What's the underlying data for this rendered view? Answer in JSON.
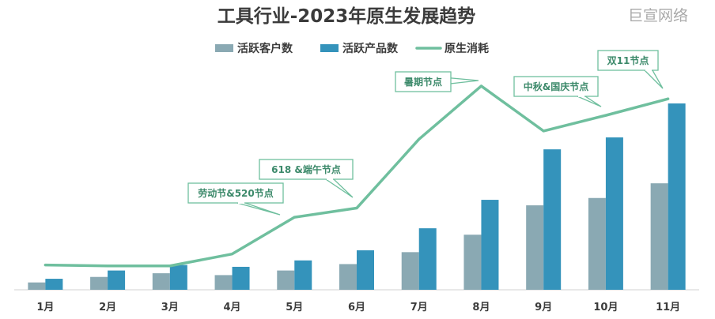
{
  "watermark": "巨宣网络",
  "chart_data": {
    "type": "bar",
    "title": "工具行业-2023年原生发展趋势",
    "categories": [
      "1月",
      "2月",
      "3月",
      "4月",
      "5月",
      "6月",
      "7月",
      "8月",
      "9月",
      "10月",
      "11月"
    ],
    "series": [
      {
        "name": "活跃客户数",
        "type": "bar",
        "color": "#8aa9b3",
        "values": [
          8,
          14,
          18,
          16,
          21,
          28,
          41,
          60,
          92,
          100,
          116
        ]
      },
      {
        "name": "活跃产品数",
        "type": "bar",
        "color": "#3493bb",
        "values": [
          12,
          21,
          27,
          25,
          32,
          43,
          67,
          98,
          153,
          166,
          203
        ]
      },
      {
        "name": "原生消耗",
        "type": "line",
        "color": "#6fbf9e",
        "values": [
          27,
          26,
          26,
          39,
          79,
          89,
          164,
          222,
          173,
          190,
          208
        ]
      }
    ],
    "ylim": [
      0,
      240
    ],
    "grid": false,
    "legend": "top-center",
    "annotations": [
      {
        "text": "劳动节&520节点",
        "category": "5月"
      },
      {
        "text": "618 &端午节点",
        "category": "6月"
      },
      {
        "text": "暑期节点",
        "category": "8月"
      },
      {
        "text": "中秋&国庆节点",
        "category": "10月"
      },
      {
        "text": "双11节点",
        "category": "11月"
      }
    ]
  }
}
